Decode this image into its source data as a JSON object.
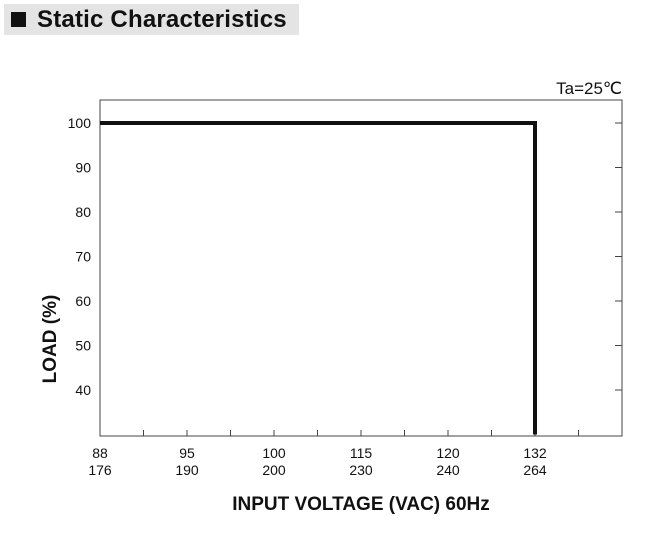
{
  "section_title": "Static Characteristics",
  "icons": {
    "header": "square-bullet-icon"
  },
  "chart_data": {
    "type": "line",
    "title": "",
    "annotation": "Ta=25℃",
    "xlabel": "INPUT VOLTAGE (VAC) 60Hz",
    "ylabel": "LOAD (%)",
    "x_ticks": [
      {
        "top": "88",
        "bottom": "176"
      },
      {
        "top": "95",
        "bottom": "190"
      },
      {
        "top": "100",
        "bottom": "200"
      },
      {
        "top": "115",
        "bottom": "230"
      },
      {
        "top": "120",
        "bottom": "240"
      },
      {
        "top": "132",
        "bottom": "264"
      }
    ],
    "x_tick_count": 12,
    "y_ticks": [
      "100",
      "90",
      "80",
      "70",
      "60",
      "50",
      "40"
    ],
    "ylim": [
      30,
      105
    ],
    "grid": false,
    "series": [
      {
        "color": "#111111",
        "points": [
          {
            "x_index": 0,
            "y": 100
          },
          {
            "x_index": 10,
            "y": 100
          },
          {
            "x_index": 10,
            "y": 30
          }
        ]
      }
    ]
  }
}
